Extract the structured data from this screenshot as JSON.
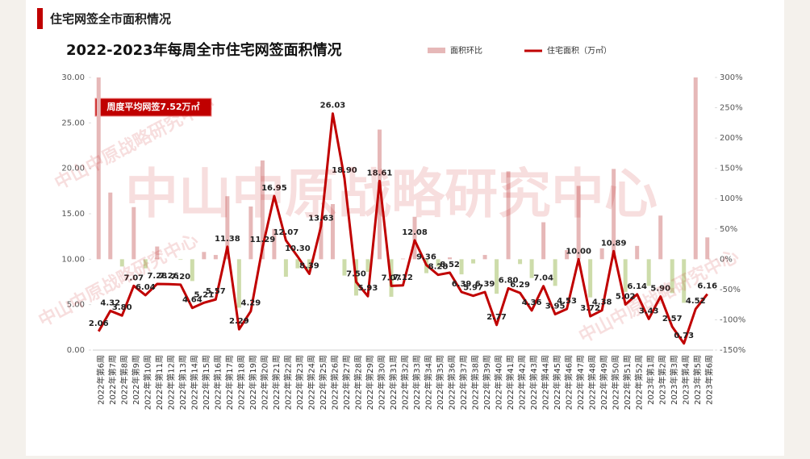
{
  "header": "住宅网签全市面积情况",
  "chart_data": {
    "type": "bar_line",
    "title": "2022-2023年每周全市住宅网签面积情况",
    "annotation": "周度平均网签7.52万㎡",
    "watermark": "中山中原战略研究中心",
    "categories": [
      "2022年第6周",
      "2022年第7周",
      "2022年第8周",
      "2022年第9周",
      "2022年第10周",
      "2022年第11周",
      "2022年第12周",
      "2022年第13周",
      "2022年第14周",
      "2022年第15周",
      "2022年第16周",
      "2022年第17周",
      "2022年第18周",
      "2022年第19周",
      "2022年第20周",
      "2022年第21周",
      "2022年第22周",
      "2022年第23周",
      "2022年第24周",
      "2022年第25周",
      "2022年第26周",
      "2022年第27周",
      "2022年第28周",
      "2022年第29周",
      "2022年第30周",
      "2022年第31周",
      "2022年第32周",
      "2022年第33周",
      "2022年第34周",
      "2022年第35周",
      "2022年第36周",
      "2022年第37周",
      "2022年第38周",
      "2022年第39周",
      "2022年第40周",
      "2022年第41周",
      "2022年第42周",
      "2022年第43周",
      "2022年第44周",
      "2022年第45周",
      "2022年第46周",
      "2022年第47周",
      "2022年第48周",
      "2022年第49周",
      "2022年第50周",
      "2022年第51周",
      "2022年第52周",
      "2023年第1周",
      "2023年第2周",
      "2023年第3周",
      "2023年第4周",
      "2023年第5周",
      "2023年第6周"
    ],
    "series": [
      {
        "name": "面积环比",
        "kind": "bar",
        "axis": "y2",
        "color": "#e6b8b8",
        "negative_color": "#cddcaa",
        "values": [
          300,
          110,
          -12,
          86,
          -15,
          21,
          0,
          -1,
          -36,
          12,
          7,
          104,
          -80,
          87,
          163,
          50,
          -29,
          -15,
          -19,
          62,
          91,
          -27,
          -60,
          -21,
          214,
          -62,
          1,
          70,
          -23,
          -12,
          3,
          -25,
          -7,
          7,
          -57,
          145,
          -8,
          -31,
          61,
          -44,
          15,
          121,
          -63,
          18,
          149,
          -54,
          22,
          -44,
          72,
          -56,
          -72,
          300,
          36
        ]
      },
      {
        "name": "住宅面积（万㎡）",
        "kind": "line",
        "color": "#c00000",
        "values": [
          2.06,
          4.32,
          3.8,
          7.07,
          6.04,
          7.28,
          7.26,
          7.2,
          4.64,
          5.21,
          5.57,
          11.38,
          2.29,
          4.29,
          11.29,
          16.95,
          12.07,
          10.3,
          8.39,
          13.63,
          26.03,
          18.9,
          7.5,
          5.93,
          18.61,
          7.07,
          7.12,
          12.08,
          9.36,
          8.28,
          8.52,
          6.39,
          5.97,
          6.39,
          2.77,
          6.8,
          6.29,
          4.36,
          7.04,
          3.95,
          4.53,
          10,
          3.72,
          4.38,
          10.89,
          5.02,
          6.14,
          3.43,
          5.9,
          2.57,
          0.73,
          4.52,
          6.16
        ],
        "value_labels": [
          "2.06",
          "4.32",
          "3.80",
          "7.07",
          "6.04",
          "7.28",
          "7.26",
          "7.20",
          "4.64",
          "5.21",
          "5.57",
          "11.38",
          "2.29",
          "4.29",
          "11.29",
          "16.95",
          "12.07",
          "10.30",
          "8.39",
          "13.63",
          "26.03",
          "18.90",
          "7.50",
          "5.93",
          "18.61",
          "7.07",
          "7.12",
          "12.08",
          "9.36",
          "8.28",
          "8.52",
          "6.39",
          "5.97",
          "6.39",
          "2.77",
          "6.80",
          "6.29",
          "4.36",
          "7.04",
          "3.95",
          "4.53",
          "10.00",
          "3.72",
          "4.38",
          "10.89",
          "5.02",
          "6.14",
          "3.43",
          "5.90",
          "2.57",
          "0.73",
          "4.52",
          "6.16"
        ]
      }
    ],
    "ylim": [
      0,
      30
    ],
    "yticks": [
      {
        "value": 0,
        "label": "0.00"
      },
      {
        "value": 5,
        "label": "5.00"
      },
      {
        "value": 10,
        "label": "10.00"
      },
      {
        "value": 15,
        "label": "15.00"
      },
      {
        "value": 20,
        "label": "20.00"
      },
      {
        "value": 25,
        "label": "25.00"
      },
      {
        "value": 30,
        "label": "30.00"
      }
    ],
    "y2lim": [
      -150,
      300
    ],
    "y2ticks": [
      {
        "value": -150,
        "label": "-150%"
      },
      {
        "value": -100,
        "label": "-100%"
      },
      {
        "value": -50,
        "label": "-50%"
      },
      {
        "value": 0,
        "label": "0%"
      },
      {
        "value": 50,
        "label": "50%"
      },
      {
        "value": 100,
        "label": "100%"
      },
      {
        "value": 150,
        "label": "150%"
      },
      {
        "value": 200,
        "label": "200%"
      },
      {
        "value": 250,
        "label": "250%"
      },
      {
        "value": 300,
        "label": "300%"
      }
    ]
  }
}
